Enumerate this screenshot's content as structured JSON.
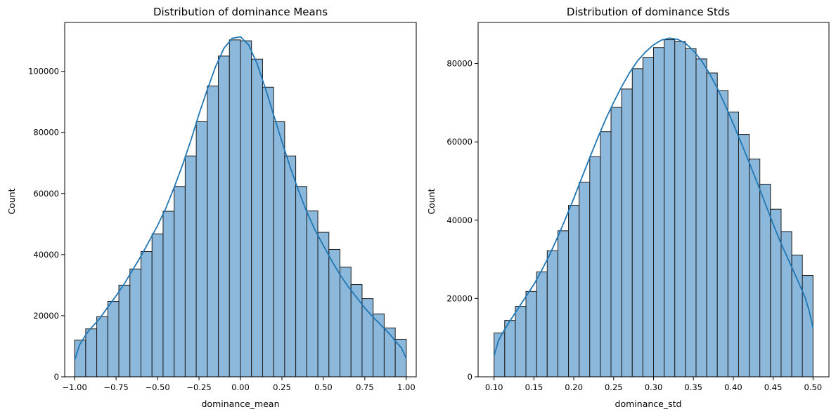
{
  "figure": {
    "background": "#ffffff",
    "bar_fill": "#8cb8dc",
    "bar_edge": "#1a1a1a",
    "kde_color": "#1f77b4"
  },
  "chart_data": [
    {
      "type": "bar",
      "title": "Distribution of dominance Means",
      "xlabel": "dominance_mean",
      "ylabel": "Count",
      "xlim": [
        -1.06,
        1.06
      ],
      "ylim": [
        0,
        116000
      ],
      "xticks": [
        -1.0,
        -0.75,
        -0.5,
        -0.25,
        0.0,
        0.25,
        0.5,
        0.75,
        1.0
      ],
      "xtick_labels": [
        "−1.00",
        "−0.75",
        "−0.50",
        "−0.25",
        "0.00",
        "0.25",
        "0.50",
        "0.75",
        "1.00"
      ],
      "yticks": [
        0,
        20000,
        40000,
        60000,
        80000,
        100000
      ],
      "ytick_labels": [
        "0",
        "20000",
        "40000",
        "60000",
        "80000",
        "100000"
      ],
      "bin_start": -1.0,
      "bin_end": 1.0,
      "values": [
        12000,
        15700,
        19700,
        24700,
        30000,
        35300,
        41000,
        46800,
        54200,
        62300,
        72300,
        83500,
        95200,
        105000,
        110300,
        110000,
        104000,
        94800,
        83500,
        72300,
        62300,
        54300,
        47300,
        41700,
        35900,
        30200,
        25600,
        20600,
        16000,
        12300
      ],
      "kde": {
        "x": [
          -1.0,
          -0.97,
          -0.93,
          -0.9,
          -0.85,
          -0.8,
          -0.75,
          -0.7,
          -0.65,
          -0.6,
          -0.55,
          -0.5,
          -0.45,
          -0.4,
          -0.35,
          -0.3,
          -0.25,
          -0.2,
          -0.15,
          -0.1,
          -0.05,
          0.0,
          0.05,
          0.1,
          0.15,
          0.2,
          0.25,
          0.3,
          0.35,
          0.4,
          0.45,
          0.5,
          0.55,
          0.6,
          0.65,
          0.7,
          0.75,
          0.8,
          0.85,
          0.9,
          0.93,
          0.97,
          1.0
        ],
        "y": [
          5500,
          10500,
          14000,
          16000,
          19000,
          22800,
          26500,
          30500,
          35000,
          39500,
          44500,
          49500,
          55200,
          62000,
          69300,
          77200,
          86000,
          94000,
          101500,
          107500,
          110800,
          111300,
          108600,
          102500,
          94500,
          85700,
          77000,
          68600,
          61000,
          54000,
          48000,
          43000,
          38000,
          33500,
          29500,
          26000,
          22500,
          19500,
          16800,
          14000,
          12000,
          9500,
          6000
        ]
      }
    },
    {
      "type": "bar",
      "title": "Distribution of dominance Stds",
      "xlabel": "dominance_std",
      "ylabel": "Count",
      "xlim": [
        0.08,
        0.52
      ],
      "ylim": [
        0,
        90500
      ],
      "xticks": [
        0.1,
        0.15,
        0.2,
        0.25,
        0.3,
        0.35,
        0.4,
        0.45,
        0.5
      ],
      "xtick_labels": [
        "0.10",
        "0.15",
        "0.20",
        "0.25",
        "0.30",
        "0.35",
        "0.40",
        "0.45",
        "0.50"
      ],
      "yticks": [
        0,
        20000,
        40000,
        60000,
        80000
      ],
      "ytick_labels": [
        "0",
        "20000",
        "40000",
        "60000",
        "80000"
      ],
      "bin_start": 0.1,
      "bin_end": 0.5,
      "values": [
        11200,
        14400,
        18000,
        21800,
        26800,
        32200,
        37300,
        43800,
        49700,
        56200,
        62600,
        68800,
        73500,
        78700,
        81600,
        84100,
        86100,
        85600,
        83800,
        81200,
        77600,
        73100,
        67600,
        61900,
        55600,
        49200,
        42800,
        37100,
        31100,
        25900
      ],
      "kde": {
        "x": [
          0.1,
          0.105,
          0.11,
          0.12,
          0.13,
          0.14,
          0.15,
          0.16,
          0.17,
          0.18,
          0.19,
          0.2,
          0.21,
          0.22,
          0.23,
          0.24,
          0.25,
          0.26,
          0.27,
          0.28,
          0.29,
          0.3,
          0.31,
          0.32,
          0.33,
          0.34,
          0.35,
          0.36,
          0.37,
          0.38,
          0.39,
          0.4,
          0.41,
          0.42,
          0.43,
          0.44,
          0.45,
          0.46,
          0.47,
          0.48,
          0.49,
          0.495,
          0.5
        ],
        "y": [
          5300,
          9000,
          11000,
          14300,
          17400,
          20500,
          23600,
          27300,
          31300,
          35800,
          40600,
          45600,
          50800,
          56000,
          61000,
          65800,
          70100,
          74100,
          77700,
          80700,
          83000,
          84800,
          86000,
          86500,
          86200,
          85200,
          83300,
          80800,
          77500,
          73700,
          69300,
          64600,
          59700,
          54700,
          49600,
          44300,
          39000,
          34000,
          29500,
          25000,
          20300,
          17000,
          12500
        ]
      }
    }
  ]
}
